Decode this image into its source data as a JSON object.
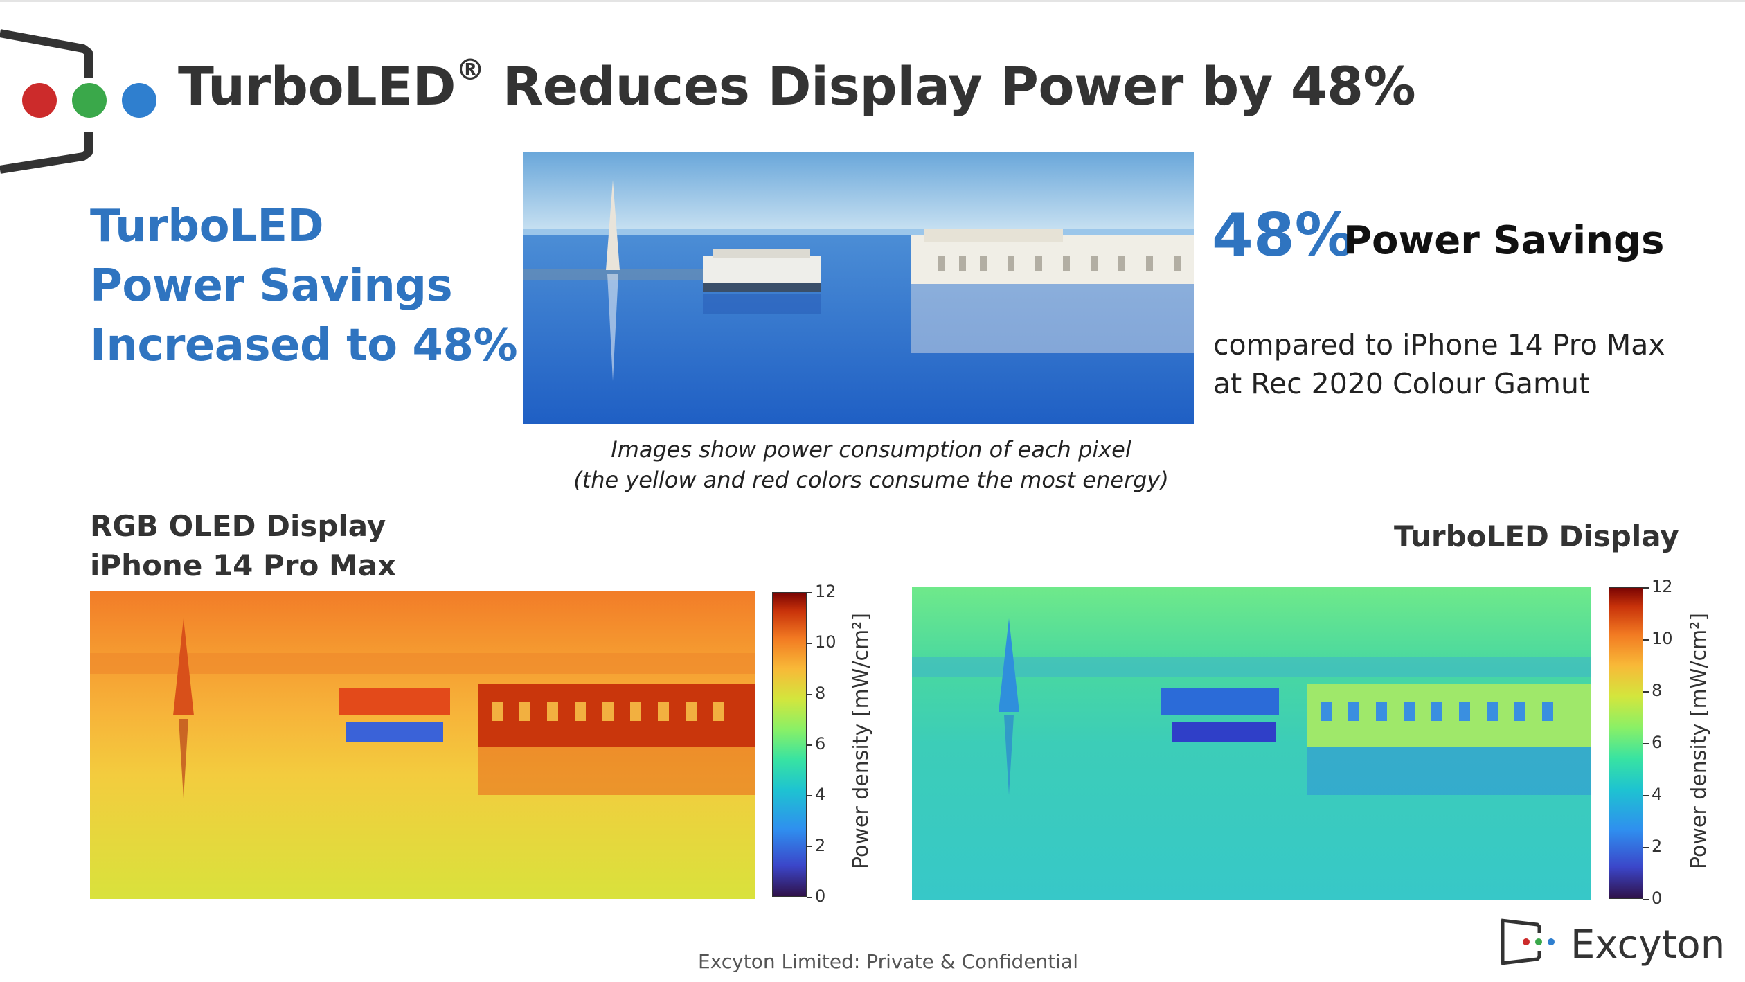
{
  "slide": {
    "title": "TurboLED",
    "title_mark": "®",
    "title_rest": " Reduces Display Power by 48%"
  },
  "left_headline": {
    "line1": "TurboLED",
    "line2": "Power Savings",
    "line3": "Increased to 48%"
  },
  "right_summary": {
    "percent": "48%",
    "label": "Power Savings",
    "compare_line1": "compared to iPhone 14 Pro Max",
    "compare_line2": "at Rec 2020 Colour Gamut"
  },
  "caption": {
    "line1": "Images show power consumption of each pixel",
    "line2": "(the yellow and red colors consume the most energy)"
  },
  "panels": {
    "left": {
      "label_line1": "RGB OLED Display",
      "label_line2": "iPhone 14 Pro Max"
    },
    "right": {
      "label_line1": "TurboLED Display"
    }
  },
  "colorbar": {
    "ticks": [
      "12",
      "10",
      "8",
      "6",
      "4",
      "2",
      "0"
    ],
    "label": "Power density  [mW/cm²]"
  },
  "footer": {
    "text": "Excyton Limited: Private & Confidential",
    "brand": "Excyton"
  },
  "colors": {
    "accent_blue": "#2f74c0",
    "logo_red": "#cc2b2b",
    "logo_green": "#3aa84a",
    "logo_blue": "#2f7fcf"
  }
}
